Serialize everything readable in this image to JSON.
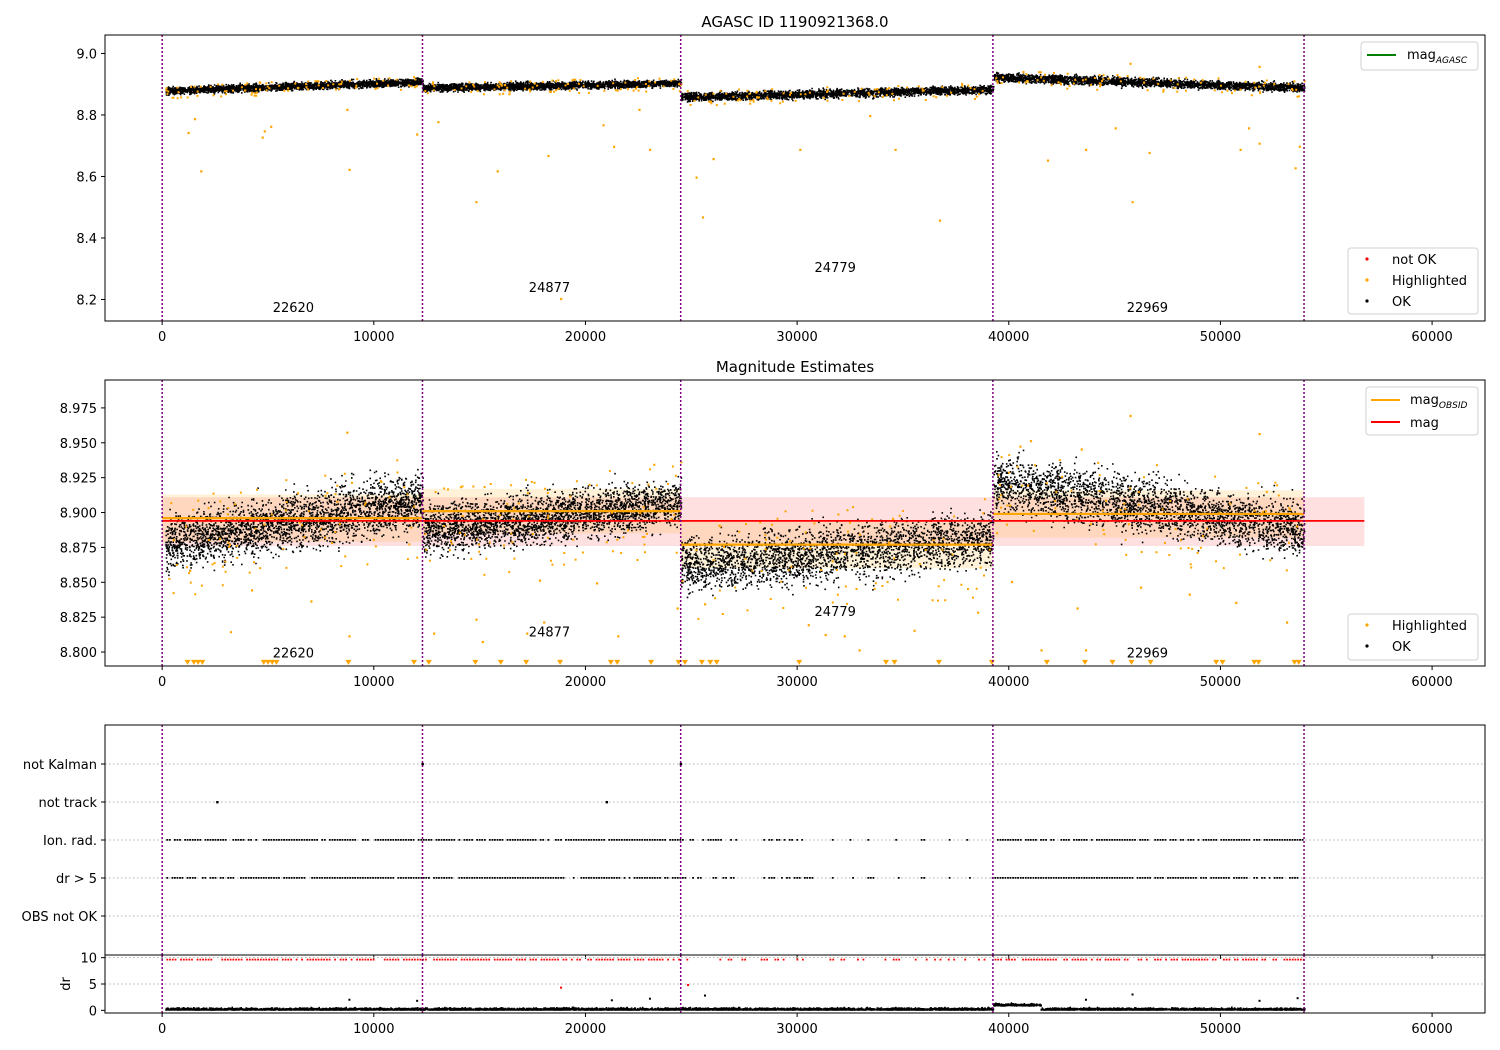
{
  "chart_data": [
    {
      "type": "scatter",
      "title": "AGASC ID 1190921368.0",
      "xlim": [
        -2700,
        62500
      ],
      "ylim": [
        8.13,
        9.06
      ],
      "xticks": [
        0,
        10000,
        20000,
        30000,
        40000,
        50000,
        60000
      ],
      "yticks": [
        8.2,
        8.4,
        8.6,
        8.8,
        9.0
      ],
      "obs_boundaries": [
        0,
        12300,
        24500,
        39250,
        53950
      ],
      "obsids": [
        {
          "label": "22620",
          "x": 6200,
          "y": 8.16
        },
        {
          "label": "24877",
          "x": 18300,
          "y": 8.225
        },
        {
          "label": "24779",
          "x": 31800,
          "y": 8.29
        },
        {
          "label": "22969",
          "x": 46550,
          "y": 8.16
        }
      ],
      "legend_upper": [
        {
          "label": "mag",
          "sub": "AGASC",
          "color": "#008000"
        }
      ],
      "legend_lower": [
        {
          "label": "not OK",
          "color": "#ff0000"
        },
        {
          "label": "Highlighted",
          "color": "#ffa500"
        },
        {
          "label": "OK",
          "color": "#000000"
        }
      ],
      "segments": [
        {
          "x0": 150,
          "x1": 12300,
          "y_start": 8.88,
          "y_end": 8.91,
          "spread": 0.03
        },
        {
          "x0": 12300,
          "x1": 24500,
          "y_start": 8.89,
          "y_end": 8.905,
          "spread": 0.03
        },
        {
          "x0": 24500,
          "x1": 39250,
          "y_start": 8.86,
          "y_end": 8.885,
          "spread": 0.035
        },
        {
          "x0": 39250,
          "x1": 53950,
          "y_start": 8.925,
          "y_end": 8.89,
          "spread": 0.035
        }
      ],
      "highlighted_outliers": [
        [
          1200,
          8.745
        ],
        [
          1500,
          8.79
        ],
        [
          1800,
          8.62
        ],
        [
          4700,
          8.73
        ],
        [
          4800,
          8.75
        ],
        [
          5100,
          8.765
        ],
        [
          8800,
          8.625
        ],
        [
          8700,
          8.82
        ],
        [
          12000,
          8.74
        ],
        [
          13000,
          8.78
        ],
        [
          14800,
          8.52
        ],
        [
          15800,
          8.62
        ],
        [
          18200,
          8.67
        ],
        [
          18800,
          8.205
        ],
        [
          20800,
          8.77
        ],
        [
          21300,
          8.7
        ],
        [
          22500,
          8.82
        ],
        [
          23000,
          8.69
        ],
        [
          25500,
          8.47
        ],
        [
          26000,
          8.66
        ],
        [
          25200,
          8.6
        ],
        [
          30100,
          8.69
        ],
        [
          33400,
          8.8
        ],
        [
          34600,
          8.69
        ],
        [
          36700,
          8.46
        ],
        [
          41800,
          8.655
        ],
        [
          43600,
          8.69
        ],
        [
          45000,
          8.76
        ],
        [
          45800,
          8.52
        ],
        [
          46600,
          8.68
        ],
        [
          50900,
          8.69
        ],
        [
          51300,
          8.76
        ],
        [
          51800,
          8.71
        ],
        [
          53500,
          8.63
        ],
        [
          53700,
          8.7
        ],
        [
          51800,
          8.96
        ],
        [
          45700,
          8.97
        ]
      ]
    },
    {
      "type": "scatter",
      "title": "Magnitude Estimates",
      "xlim": [
        -2700,
        62500
      ],
      "ylim": [
        8.79,
        8.995
      ],
      "xticks": [
        0,
        10000,
        20000,
        30000,
        40000,
        50000,
        60000
      ],
      "yticks": [
        8.8,
        8.825,
        8.85,
        8.875,
        8.9,
        8.925,
        8.95,
        8.975
      ],
      "obs_boundaries": [
        0,
        12300,
        24500,
        39250,
        53950
      ],
      "obsids": [
        {
          "label": "22620",
          "x": 6200,
          "y": 8.796
        },
        {
          "label": "24877",
          "x": 18300,
          "y": 8.811
        },
        {
          "label": "24779",
          "x": 31800,
          "y": 8.826
        },
        {
          "label": "22969",
          "x": 46550,
          "y": 8.796
        }
      ],
      "legend_upper": [
        {
          "label": "mag",
          "sub": "OBSID",
          "color": "#ffa500"
        },
        {
          "label": "mag",
          "sub": "",
          "color": "#ff0000"
        }
      ],
      "legend_lower": [
        {
          "label": "Highlighted",
          "color": "#ffa500"
        },
        {
          "label": "OK",
          "color": "#000000"
        }
      ],
      "mag": 8.894,
      "mag_band": [
        8.876,
        8.911
      ],
      "mag_line_x": [
        0,
        56800
      ],
      "mag_obsid": [
        {
          "x0": 0,
          "x1": 12300,
          "value": 8.896,
          "band": [
            8.879,
            8.913
          ]
        },
        {
          "x0": 12300,
          "x1": 24500,
          "value": 8.901,
          "band": [
            8.885,
            8.917
          ]
        },
        {
          "x0": 24500,
          "x1": 39250,
          "value": 8.877,
          "band": [
            8.86,
            8.894
          ]
        },
        {
          "x0": 39250,
          "x1": 53950,
          "value": 8.899,
          "band": [
            8.882,
            8.916
          ]
        }
      ],
      "segments": [
        {
          "x0": 150,
          "x1": 12300,
          "y_start": 8.878,
          "y_end": 8.91,
          "spread": 0.05
        },
        {
          "x0": 12300,
          "x1": 24500,
          "y_start": 8.888,
          "y_end": 8.907,
          "spread": 0.045
        },
        {
          "x0": 24500,
          "x1": 39250,
          "y_start": 8.862,
          "y_end": 8.882,
          "spread": 0.05
        },
        {
          "x0": 39250,
          "x1": 53950,
          "y_start": 8.922,
          "y_end": 8.888,
          "spread": 0.05
        }
      ],
      "highlighted_outliers": [
        [
          3200,
          8.815
        ],
        [
          4200,
          8.845
        ],
        [
          7000,
          8.837
        ],
        [
          8800,
          8.812
        ],
        [
          12800,
          8.814
        ],
        [
          14800,
          8.824
        ],
        [
          15100,
          8.808
        ],
        [
          17200,
          8.814
        ],
        [
          18000,
          8.822
        ],
        [
          17800,
          8.852
        ],
        [
          20500,
          8.85
        ],
        [
          21500,
          8.812
        ],
        [
          24300,
          8.832
        ],
        [
          25600,
          8.835
        ],
        [
          30500,
          8.82
        ],
        [
          31300,
          8.813
        ],
        [
          32200,
          8.812
        ],
        [
          32900,
          8.802
        ],
        [
          35500,
          8.816
        ],
        [
          38500,
          8.829
        ],
        [
          40100,
          8.851
        ],
        [
          41500,
          8.802
        ],
        [
          43200,
          8.832
        ],
        [
          43600,
          8.802
        ],
        [
          45700,
          8.97
        ],
        [
          46200,
          8.847
        ],
        [
          48500,
          8.842
        ],
        [
          50700,
          8.836
        ],
        [
          51800,
          8.957
        ],
        [
          53100,
          8.822
        ],
        [
          40500,
          8.948
        ],
        [
          41000,
          8.952
        ],
        [
          43400,
          8.946
        ],
        [
          8700,
          8.958
        ],
        [
          23200,
          8.935
        ]
      ],
      "below_range_x": [
        1200,
        1500,
        1700,
        1900,
        4800,
        5000,
        5200,
        5400,
        8800,
        11900,
        12600,
        14800,
        16000,
        17200,
        18800,
        21200,
        21500,
        23100,
        24400,
        24700,
        25500,
        25900,
        26200,
        30100,
        34200,
        34600,
        36700,
        39200,
        41800,
        43600,
        44900,
        45800,
        46700,
        49800,
        50100,
        51600,
        51800,
        53500,
        53700
      ]
    },
    {
      "type": "scatter",
      "title": "",
      "xlim": [
        -2700,
        62500
      ],
      "xticks": [
        0,
        10000,
        20000,
        30000,
        40000,
        50000,
        60000
      ],
      "yticks": [
        "not Kalman",
        "not track",
        "Ion. rad.",
        "dr > 5",
        "OBS not OK"
      ],
      "obs_boundaries": [
        0,
        12300,
        24500,
        39250,
        53950
      ],
      "flags": [
        {
          "label": "not Kalman",
          "x": [
            12300,
            24500
          ]
        },
        {
          "label": "not track",
          "x": [
            2600,
            21000
          ]
        }
      ],
      "flag_gaps": [
        [
          27300,
          28300
        ],
        [
          30700,
          31300
        ],
        [
          31700,
          32300
        ],
        [
          32700,
          33300
        ],
        [
          33700,
          34600
        ],
        [
          34800,
          35800
        ],
        [
          36000,
          37000
        ],
        [
          37200,
          38000
        ],
        [
          38200,
          39200
        ]
      ]
    },
    {
      "type": "scatter",
      "title": "",
      "ylabel": "dr",
      "xlim": [
        -2700,
        62500
      ],
      "ylim": [
        -0.5,
        10.5
      ],
      "xticks": [
        0,
        10000,
        20000,
        30000,
        40000,
        50000,
        60000
      ],
      "yticks": [
        0,
        5,
        10
      ],
      "obs_boundaries": [
        0,
        12300,
        24500,
        39250,
        53950
      ]
    }
  ]
}
